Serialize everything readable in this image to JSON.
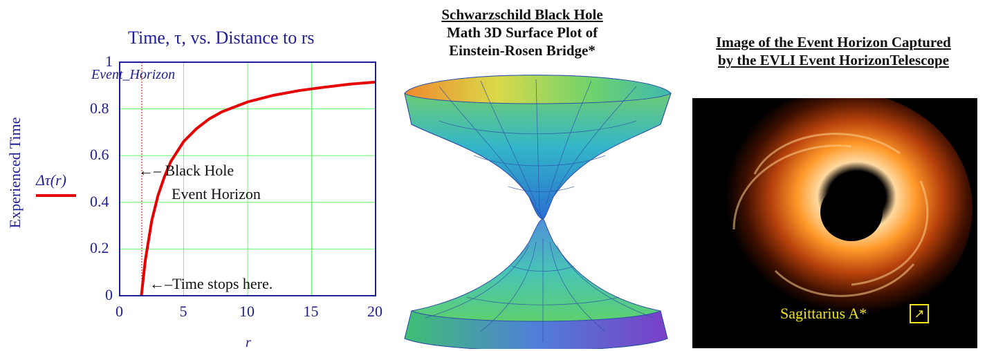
{
  "left_plot": {
    "title": "Time, τ, vs. Distance to rs",
    "y_axis_title": "Experienced Time",
    "y_axis_var": "Δτ(r)",
    "x_axis_var": "r",
    "event_horizon_label": "Event_Horizon",
    "annotation_black_hole_line1": "←– Black Hole",
    "annotation_black_hole_line2": "Event Horizon",
    "annotation_time_stops": "←–Time stops here.",
    "x_ticks": [
      "0",
      "5",
      "10",
      "15",
      "20"
    ],
    "y_ticks": [
      "0",
      "0.2",
      "0.4",
      "0.6",
      "0.8",
      "1"
    ],
    "colors": {
      "axis": "#1e1e96",
      "grid": "#66ff66",
      "curve": "#e60000"
    }
  },
  "chart_data": {
    "type": "line",
    "title": "Time, τ, vs. Distance to rs",
    "xlabel": "r",
    "ylabel": "Experienced Time",
    "xlim": [
      0,
      20
    ],
    "ylim": [
      0,
      1
    ],
    "grid": true,
    "series": [
      {
        "name": "Δτ(r)",
        "x": [
          1.7,
          2,
          2.5,
          3,
          3.5,
          4,
          5,
          6,
          7,
          8,
          10,
          12,
          14,
          16,
          18,
          20
        ],
        "y": [
          0,
          0.15,
          0.32,
          0.43,
          0.51,
          0.575,
          0.66,
          0.715,
          0.757,
          0.788,
          0.83,
          0.858,
          0.878,
          0.893,
          0.906,
          0.915
        ]
      }
    ],
    "vertical_marker_x": 1.7
  },
  "middle_panel": {
    "title_line1": "Schwarzschild Black Hole",
    "title_line2": "Math 3D Surface Plot of",
    "title_line3": "Einstein-Rosen Bridge*"
  },
  "right_panel": {
    "title_line1": "Image of the Event Horizon Captured",
    "title_line2": "by the EVLI Event HorizonTelescope",
    "caption": "Sagittarius A*",
    "external_link_icon": "↗"
  }
}
